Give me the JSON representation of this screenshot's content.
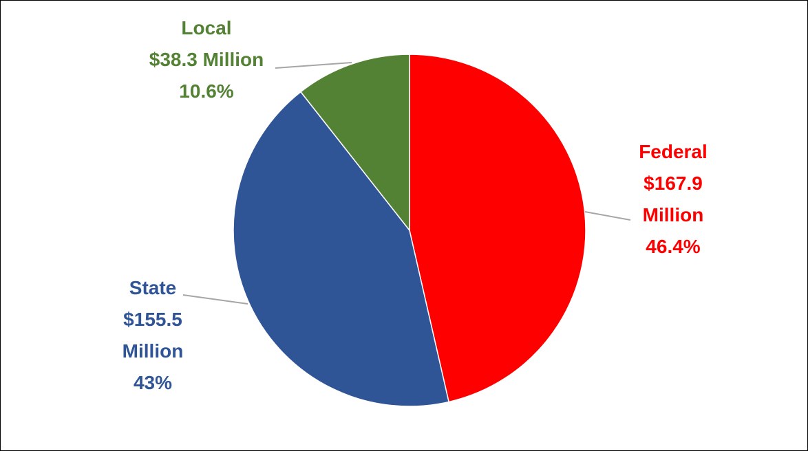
{
  "chart_data": {
    "type": "pie",
    "title": "",
    "start_angle_deg": 0,
    "direction": "clockwise",
    "slices": [
      {
        "name": "Federal",
        "value": 167.9,
        "percent": 46.4,
        "color": "#ff0000",
        "label_lines": [
          "Federal",
          "$167.9",
          "Million",
          "46.4%"
        ]
      },
      {
        "name": "State",
        "value": 155.5,
        "percent": 43,
        "color": "#2f5597",
        "label_lines": [
          "State",
          "$155.5",
          "Million",
          "43%"
        ]
      },
      {
        "name": "Local",
        "value": 38.3,
        "percent": 10.6,
        "color": "#548235",
        "label_lines": [
          "Local",
          "$38.3 Million",
          "10.6%"
        ]
      }
    ],
    "leader_line_color": "#a6a6a6",
    "slice_border_color": "#ffffff",
    "legend": "none"
  }
}
